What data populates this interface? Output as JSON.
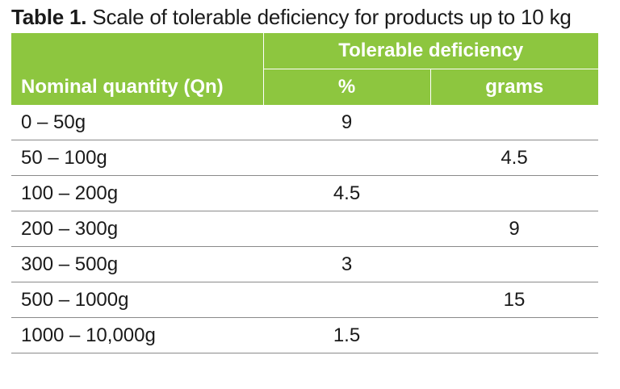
{
  "caption": {
    "label": "Table 1.",
    "text": " Scale of tolerable deficiency for products up to 10 kg"
  },
  "table": {
    "header": {
      "quantity_col": "Nominal quantity (Qn)",
      "group": "Tolerable deficiency",
      "percent_col": "%",
      "grams_col": "grams"
    },
    "rows": [
      {
        "range": "0 – 50g",
        "percent": "9",
        "grams": ""
      },
      {
        "range": "50 – 100g",
        "percent": "",
        "grams": "4.5"
      },
      {
        "range": "100 – 200g",
        "percent": "4.5",
        "grams": ""
      },
      {
        "range": "200 – 300g",
        "percent": "",
        "grams": "9"
      },
      {
        "range": "300 – 500g",
        "percent": "3",
        "grams": ""
      },
      {
        "range": "500 – 1000g",
        "percent": "",
        "grams": "15"
      },
      {
        "range": "1000 – 10,000g",
        "percent": "1.5",
        "grams": ""
      }
    ]
  },
  "colors": {
    "header_bg": "#8dc63f",
    "header_text": "#ffffff",
    "row_rule": "#8a8a8a"
  }
}
